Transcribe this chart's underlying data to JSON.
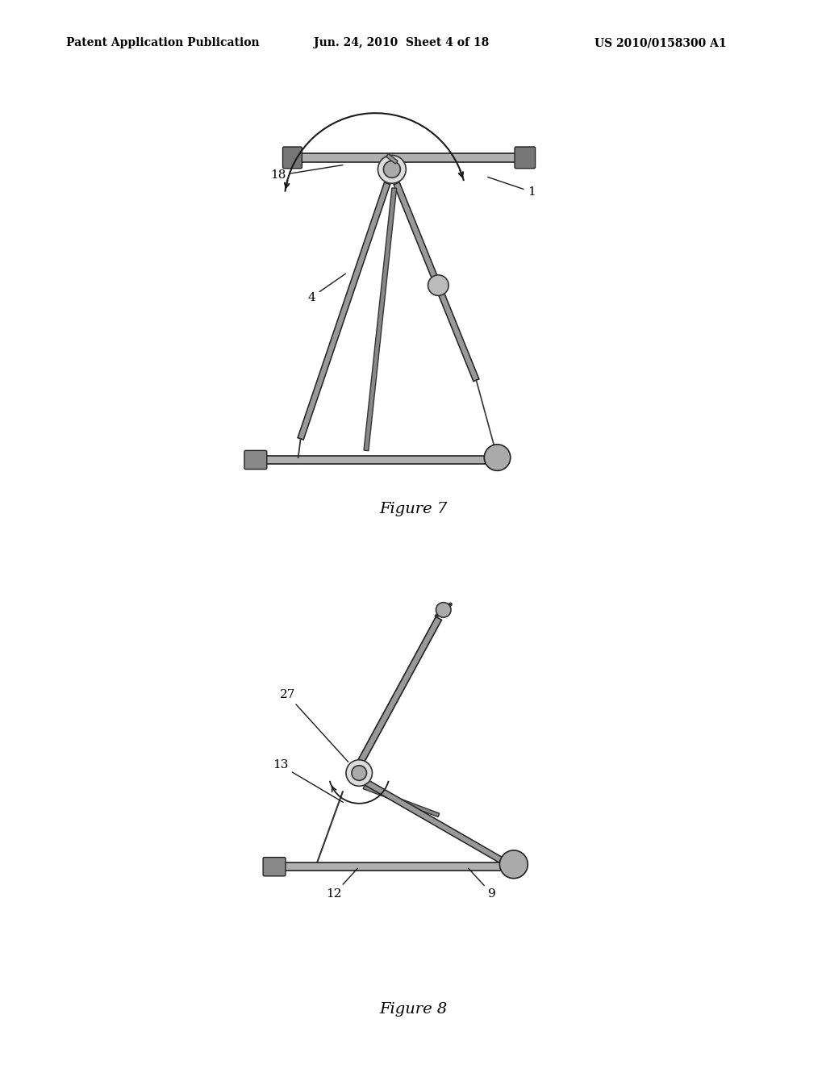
{
  "background_color": "#ffffff",
  "header_left": "Patent Application Publication",
  "header_center": "Jun. 24, 2010  Sheet 4 of 18",
  "header_right": "US 2010/0158300 A1",
  "header_fontsize": 10,
  "fig7_caption": "Figure 7",
  "fig8_caption": "Figure 8",
  "caption_fontsize": 14,
  "label_fontsize": 11,
  "line_color": "#1a1a1a"
}
